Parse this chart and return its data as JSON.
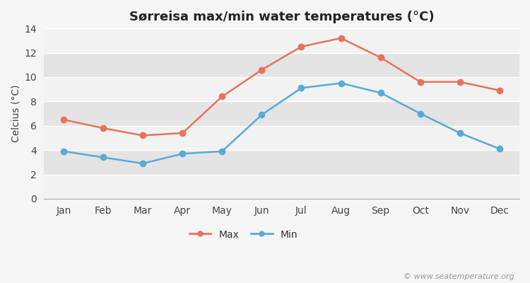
{
  "title": "Sørreisa max/min water temperatures (°C)",
  "months": [
    "Jan",
    "Feb",
    "Mar",
    "Apr",
    "May",
    "Jun",
    "Jul",
    "Aug",
    "Sep",
    "Oct",
    "Nov",
    "Dec"
  ],
  "max_values": [
    6.5,
    5.8,
    5.2,
    5.4,
    8.4,
    10.6,
    12.5,
    13.2,
    11.6,
    9.6,
    9.6,
    8.9
  ],
  "min_values": [
    3.9,
    3.4,
    2.9,
    3.7,
    3.9,
    6.9,
    9.1,
    9.5,
    8.7,
    7.0,
    5.4,
    4.1
  ],
  "max_color": "#e8735a",
  "min_color": "#5aaad4",
  "max_label": "Max",
  "min_label": "Min",
  "ylabel": "Celcius (°C)",
  "ylim": [
    0,
    14
  ],
  "yticks": [
    0,
    2,
    4,
    6,
    8,
    10,
    12,
    14
  ],
  "figure_bg": "#f5f5f5",
  "plot_bg": "#ebebeb",
  "band_light": "#f2f2f2",
  "band_dark": "#e4e4e4",
  "grid_color": "#ffffff",
  "watermark": "© www.seatemperature.org",
  "title_fontsize": 13,
  "label_fontsize": 10,
  "tick_fontsize": 10,
  "watermark_fontsize": 8
}
